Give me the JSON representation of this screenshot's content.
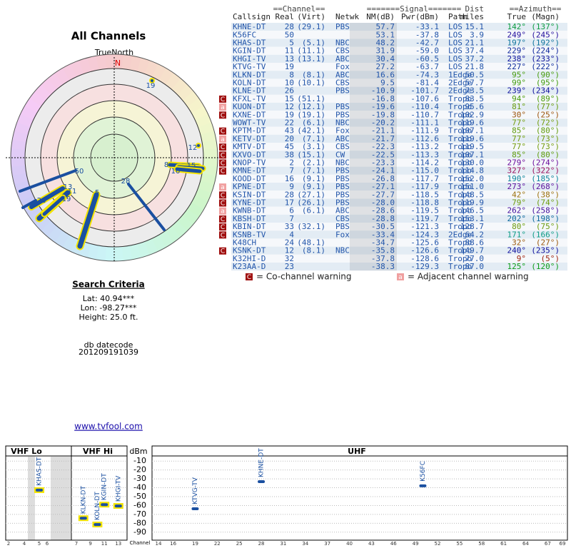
{
  "polar": {
    "title": "All Channels",
    "north_label": "TrueNorth",
    "north_mark": "N",
    "labels": [
      "19",
      "12",
      "8",
      "15",
      "10",
      "50",
      "13",
      "11",
      "26",
      "19",
      "5",
      "28"
    ]
  },
  "search": {
    "title": "Search Criteria",
    "lat": "Lat: 40.94***",
    "lon": "Lon: -98.27***",
    "height": "Height: 25.0 ft.",
    "datecode_label": "db datecode",
    "datecode": "201209191039",
    "link": "www.tvfool.com"
  },
  "table": {
    "group_headers": [
      "==Channel==",
      "=======Signal=======",
      "Dist",
      "==Azimuth=="
    ],
    "headers": [
      "Callsign",
      "Real",
      "(Virt)",
      "Netwk",
      "NM(dB)",
      "Pwr(dBm)",
      "Path",
      "miles",
      "True",
      "(Magn)"
    ],
    "rows": [
      {
        "warnings": [],
        "cells": [
          "KHNE-DT",
          "28",
          "(29.1)",
          "PBS",
          "57.7",
          "-33.1",
          "LOS",
          "15.1",
          "142°",
          "(137°)"
        ]
      },
      {
        "warnings": [],
        "cells": [
          "K56FC",
          "50",
          null,
          null,
          "53.1",
          "-37.8",
          "LOS",
          "3.9",
          "249°",
          "(245°)"
        ]
      },
      {
        "warnings": [],
        "cells": [
          "KHAS-DT",
          "5",
          "(5.1)",
          "NBC",
          "48.2",
          "-42.7",
          "LOS",
          "21.1",
          "197°",
          "(192°)"
        ]
      },
      {
        "warnings": [],
        "cells": [
          "KGIN-DT",
          "11",
          "(11.1)",
          "CBS",
          "31.9",
          "-59.0",
          "LOS",
          "37.4",
          "229°",
          "(224°)"
        ]
      },
      {
        "warnings": [],
        "cells": [
          "KHGI-TV",
          "13",
          "(13.1)",
          "ABC",
          "30.4",
          "-60.5",
          "LOS",
          "37.2",
          "238°",
          "(233°)"
        ]
      },
      {
        "warnings": [],
        "cells": [
          "KTVG-TV",
          "19",
          null,
          "Fox",
          "27.2",
          "-63.7",
          "LOS",
          "21.8",
          "227°",
          "(222°)"
        ]
      },
      {
        "warnings": [],
        "cells": [
          "KLKN-DT",
          "8",
          "(8.1)",
          "ABC",
          "16.6",
          "-74.3",
          "1Edge",
          "50.5",
          "95°",
          "(90°)"
        ]
      },
      {
        "warnings": [],
        "cells": [
          "KOLN-DT",
          "10",
          "(10.1)",
          "CBS",
          "9.5",
          "-81.4",
          "2Edge",
          "57.7",
          "99°",
          "(95°)"
        ]
      },
      {
        "warnings": [],
        "cells": [
          "KLNE-DT",
          "26",
          null,
          "PBS",
          "-10.9",
          "-101.7",
          "2Edge",
          "73.5",
          "239°",
          "(234°)"
        ]
      },
      {
        "warnings": [
          "C"
        ],
        "cells": [
          "KFXL-TV",
          "15",
          "(51.1)",
          null,
          "-16.8",
          "-107.6",
          "Tropo",
          "83.5",
          "94°",
          "(89°)"
        ]
      },
      {
        "warnings": [
          "a"
        ],
        "cells": [
          "KUON-DT",
          "12",
          "(12.1)",
          "PBS",
          "-19.6",
          "-110.4",
          "Tropo",
          "95.6",
          "81°",
          "(77°)"
        ]
      },
      {
        "warnings": [
          "C"
        ],
        "cells": [
          "KXNE-DT",
          "19",
          "(19.1)",
          "PBS",
          "-19.8",
          "-110.7",
          "Tropo",
          "102.9",
          "30°",
          "(25°)"
        ]
      },
      {
        "warnings": [],
        "cells": [
          "WOWT-TV",
          "22",
          "(6.1)",
          "NBC",
          "-20.2",
          "-111.1",
          "Tropo",
          "119.6",
          "77°",
          "(72°)"
        ]
      },
      {
        "warnings": [
          "C"
        ],
        "cells": [
          "KPTM-DT",
          "43",
          "(42.1)",
          "Fox",
          "-21.1",
          "-111.9",
          "Tropo",
          "107.1",
          "85°",
          "(80°)"
        ]
      },
      {
        "warnings": [
          "a"
        ],
        "cells": [
          "KETV-DT",
          "20",
          "(7.1)",
          "ABC",
          "-21.7",
          "-112.6",
          "Tropo",
          "119.6",
          "77°",
          "(73°)"
        ]
      },
      {
        "warnings": [
          "C"
        ],
        "cells": [
          "KMTV-DT",
          "45",
          "(3.1)",
          "CBS",
          "-22.3",
          "-113.2",
          "Tropo",
          "119.5",
          "77°",
          "(73°)"
        ]
      },
      {
        "warnings": [
          "C"
        ],
        "cells": [
          "KXVO-DT",
          "38",
          "(15.1)",
          "CW",
          "-22.5",
          "-113.3",
          "Tropo",
          "107.1",
          "85°",
          "(80°)"
        ]
      },
      {
        "warnings": [
          "C"
        ],
        "cells": [
          "KNOP-TV",
          "2",
          "(2.1)",
          "NBC",
          "-23.3",
          "-114.2",
          "Tropo",
          "130.0",
          "279°",
          "(274°)"
        ]
      },
      {
        "warnings": [
          "C"
        ],
        "cells": [
          "KMNE-DT",
          "7",
          "(7.1)",
          "PBS",
          "-24.1",
          "-115.0",
          "Tropo",
          "114.8",
          "327°",
          "(322°)"
        ]
      },
      {
        "warnings": [],
        "cells": [
          "KOOD-DT",
          "16",
          "(9.1)",
          "PBS",
          "-26.8",
          "-117.7",
          "Tropo",
          "152.0",
          "190°",
          "(185°)"
        ]
      },
      {
        "warnings": [
          "a"
        ],
        "cells": [
          "KPNE-DT",
          "9",
          "(9.1)",
          "PBS",
          "-27.1",
          "-117.9",
          "Tropo",
          "151.0",
          "273°",
          "(268°)"
        ]
      },
      {
        "warnings": [
          "C"
        ],
        "cells": [
          "KSIN-DT",
          "28",
          "(27.1)",
          "PBS",
          "-27.7",
          "-118.5",
          "Tropo",
          "148.5",
          "42°",
          "(38°)"
        ]
      },
      {
        "warnings": [
          "C"
        ],
        "cells": [
          "KYNE-DT",
          "17",
          "(26.1)",
          "PBS",
          "-28.0",
          "-118.8",
          "Tropo",
          "119.9",
          "79°",
          "(74°)"
        ]
      },
      {
        "warnings": [
          "a"
        ],
        "cells": [
          "KWNB-DT",
          "6",
          "(6.1)",
          "ABC",
          "-28.6",
          "-119.5",
          "Tropo",
          "146.5",
          "262°",
          "(258°)"
        ]
      },
      {
        "warnings": [
          "C"
        ],
        "cells": [
          "KBSH-DT",
          "7",
          null,
          "CBS",
          "-28.8",
          "-119.7",
          "Tropo",
          "153.1",
          "202°",
          "(198°)"
        ]
      },
      {
        "warnings": [
          "C"
        ],
        "cells": [
          "KBIN-DT",
          "33",
          "(32.1)",
          "PBS",
          "-30.5",
          "-121.3",
          "Tropo",
          "128.7",
          "80°",
          "(75°)"
        ]
      },
      {
        "warnings": [
          "C"
        ],
        "cells": [
          "KSNB-TV",
          "4",
          null,
          "Fox",
          "-33.4",
          "-124.3",
          "2Edge",
          "64.2",
          "171°",
          "(166°)"
        ]
      },
      {
        "warnings": [],
        "cells": [
          "K48CH",
          "24",
          "(48.1)",
          null,
          "-34.7",
          "-125.6",
          "Tropo",
          "88.6",
          "32°",
          "(27°)"
        ]
      },
      {
        "warnings": [
          "C"
        ],
        "cells": [
          "KSNK-DT",
          "12",
          "(8.1)",
          "NBC",
          "-35.8",
          "-126.6",
          "Tropo",
          "149.7",
          "240°",
          "(235°)"
        ]
      },
      {
        "warnings": [],
        "cells": [
          "K32HI-D",
          "32",
          null,
          null,
          "-37.8",
          "-128.6",
          "Tropo",
          "77.0",
          "9°",
          "(5°)"
        ]
      },
      {
        "warnings": [],
        "cells": [
          "K23AA-D",
          "23",
          null,
          null,
          "-38.3",
          "-129.3",
          "Tropo",
          "87.0",
          "125°",
          "(120°)"
        ]
      }
    ],
    "legend": {
      "co_icon": "C",
      "co_text": "= Co-channel warning",
      "adj_icon": "a",
      "adj_text": "= Adjacent channel warning"
    }
  },
  "spectrum": {
    "bands": [
      "VHF Lo",
      "VHF Hi",
      "UHF"
    ],
    "ylabel": "dBm",
    "xlabel": "Channel",
    "ylim": [
      -5,
      -95
    ],
    "yticks": [
      -10,
      -20,
      -30,
      -40,
      -50,
      -60,
      -70,
      -80,
      -90
    ],
    "xticks": [
      2,
      4,
      5,
      6,
      7,
      9,
      11,
      13,
      14,
      16,
      19,
      22,
      25,
      28,
      31,
      34,
      37,
      40,
      43,
      46,
      49,
      52,
      55,
      58,
      61,
      64,
      67,
      69
    ],
    "stations": [
      {
        "name": "KHAS-DT",
        "channel": 5,
        "dbm": -42.7,
        "highlight": true
      },
      {
        "name": "KLKN-DT",
        "channel": 8,
        "dbm": -74.3,
        "highlight": true
      },
      {
        "name": "KOLN-DT",
        "channel": 10,
        "dbm": -81.4,
        "highlight": true
      },
      {
        "name": "KGIN-DT",
        "channel": 11,
        "dbm": -59.0,
        "highlight": true
      },
      {
        "name": "KHGI-TV",
        "channel": 13,
        "dbm": -60.5,
        "highlight": true
      },
      {
        "name": "KTVG-TV",
        "channel": 19,
        "dbm": -63.7,
        "highlight": false
      },
      {
        "name": "KHNE-DT",
        "channel": 28,
        "dbm": -33.1,
        "highlight": false
      },
      {
        "name": "K56FC",
        "channel": 50,
        "dbm": -37.8,
        "highlight": false
      }
    ]
  }
}
